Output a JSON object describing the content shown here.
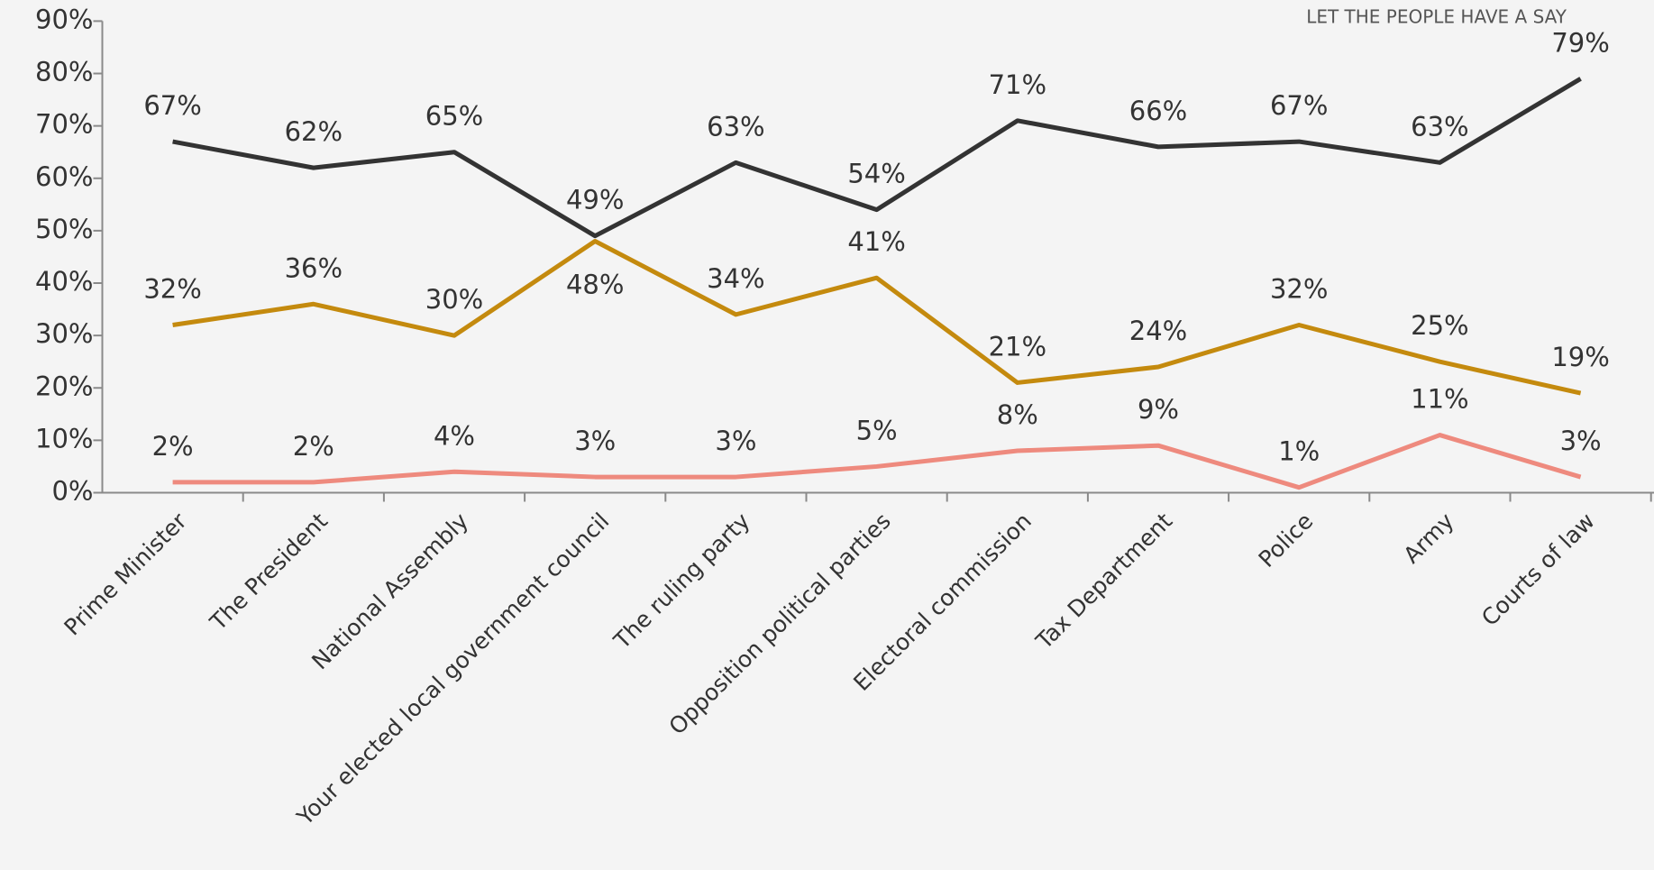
{
  "chart_data": {
    "type": "line",
    "watermark": "LET THE PEOPLE HAVE A SAY",
    "categories": [
      "Prime Minister",
      "The President",
      "National Assembly",
      "Your elected local government council",
      "The ruling party",
      "Opposition political parties",
      "Electoral commission",
      "Tax Department",
      "Police",
      "Army",
      "Courts of law"
    ],
    "series": [
      {
        "color": "#333333",
        "values": [
          67,
          62,
          65,
          49,
          63,
          54,
          71,
          66,
          67,
          63,
          79
        ],
        "value_labels": [
          "67%",
          "62%",
          "65%",
          "49%",
          "63%",
          "54%",
          "71%",
          "66%",
          "67%",
          "63%",
          "79%"
        ]
      },
      {
        "color": "#c48a0e",
        "values": [
          32,
          36,
          30,
          48,
          34,
          41,
          21,
          24,
          32,
          25,
          19
        ],
        "value_labels": [
          "32%",
          "36%",
          "30%",
          "48%",
          "34%",
          "41%",
          "21%",
          "24%",
          "32%",
          "25%",
          "19%"
        ]
      },
      {
        "color": "#ee8a7e",
        "values": [
          2,
          2,
          4,
          3,
          3,
          5,
          8,
          9,
          1,
          11,
          3
        ],
        "value_labels": [
          "2%",
          "2%",
          "4%",
          "3%",
          "3%",
          "5%",
          "8%",
          "9%",
          "1%",
          "11%",
          "3%"
        ]
      }
    ],
    "ylim": [
      0,
      90
    ],
    "yticks": [
      {
        "value": 0,
        "label": "0%"
      },
      {
        "value": 10,
        "label": "10%"
      },
      {
        "value": 20,
        "label": "20%"
      },
      {
        "value": 30,
        "label": "30%"
      },
      {
        "value": 40,
        "label": "40%"
      },
      {
        "value": 50,
        "label": "50%"
      },
      {
        "value": 60,
        "label": "60%"
      },
      {
        "value": 70,
        "label": "70%"
      },
      {
        "value": 80,
        "label": "80%"
      },
      {
        "value": 90,
        "label": "90%"
      }
    ],
    "grid": false
  }
}
